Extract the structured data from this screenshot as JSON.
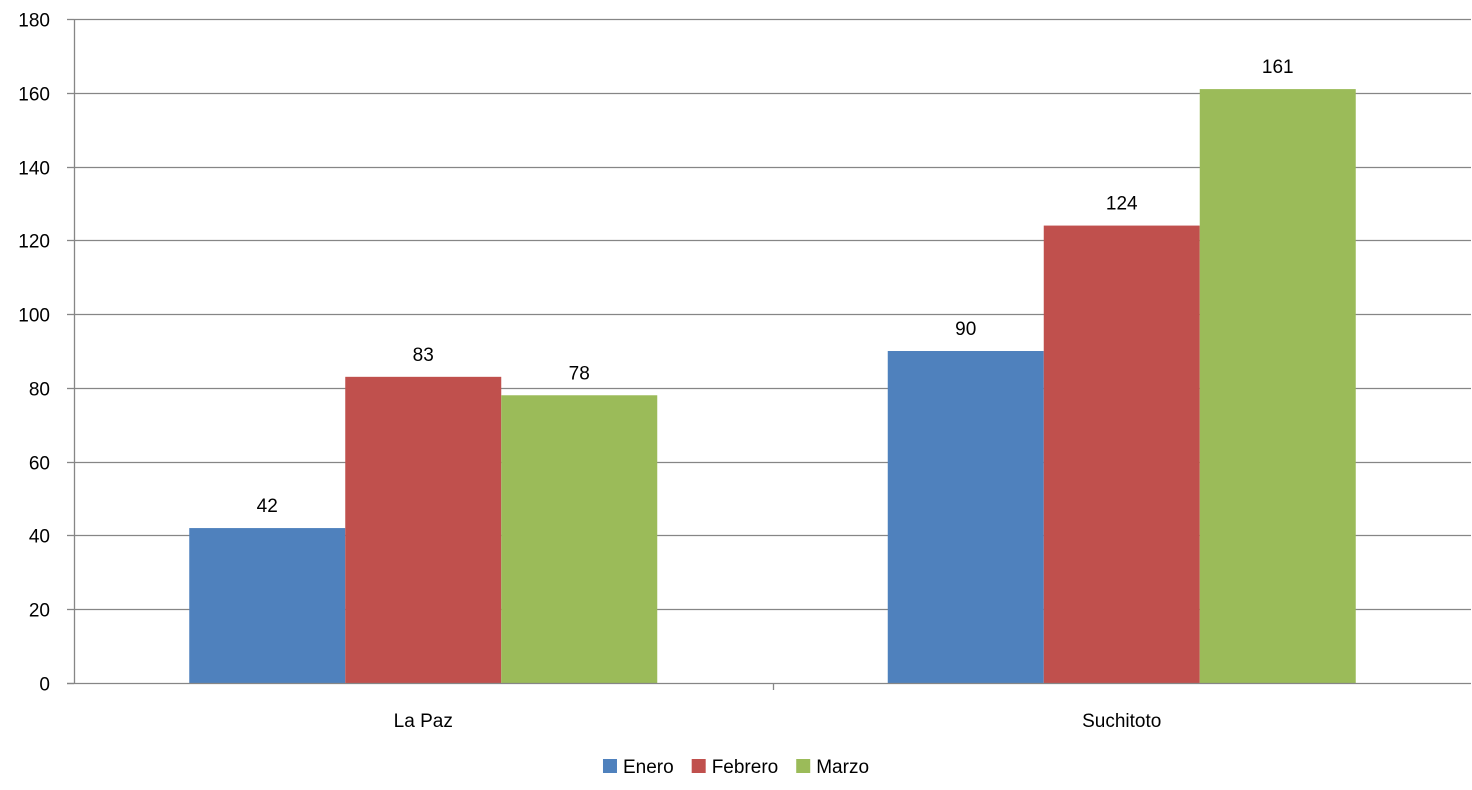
{
  "chart_data": {
    "type": "bar",
    "categories": [
      "La Paz",
      "Suchitoto"
    ],
    "series": [
      {
        "name": "Enero",
        "values": [
          42,
          90
        ],
        "color": "#4F81BD"
      },
      {
        "name": "Febrero",
        "values": [
          83,
          124
        ],
        "color": "#C0504D"
      },
      {
        "name": "Marzo",
        "values": [
          78,
          161
        ],
        "color": "#9BBB59"
      }
    ],
    "ylim": [
      0,
      180
    ],
    "yticks": [
      0,
      20,
      40,
      60,
      80,
      100,
      120,
      140,
      160,
      180
    ],
    "grid": true,
    "legend_position": "bottom",
    "data_labels": true,
    "title": "",
    "xlabel": "",
    "ylabel": ""
  }
}
